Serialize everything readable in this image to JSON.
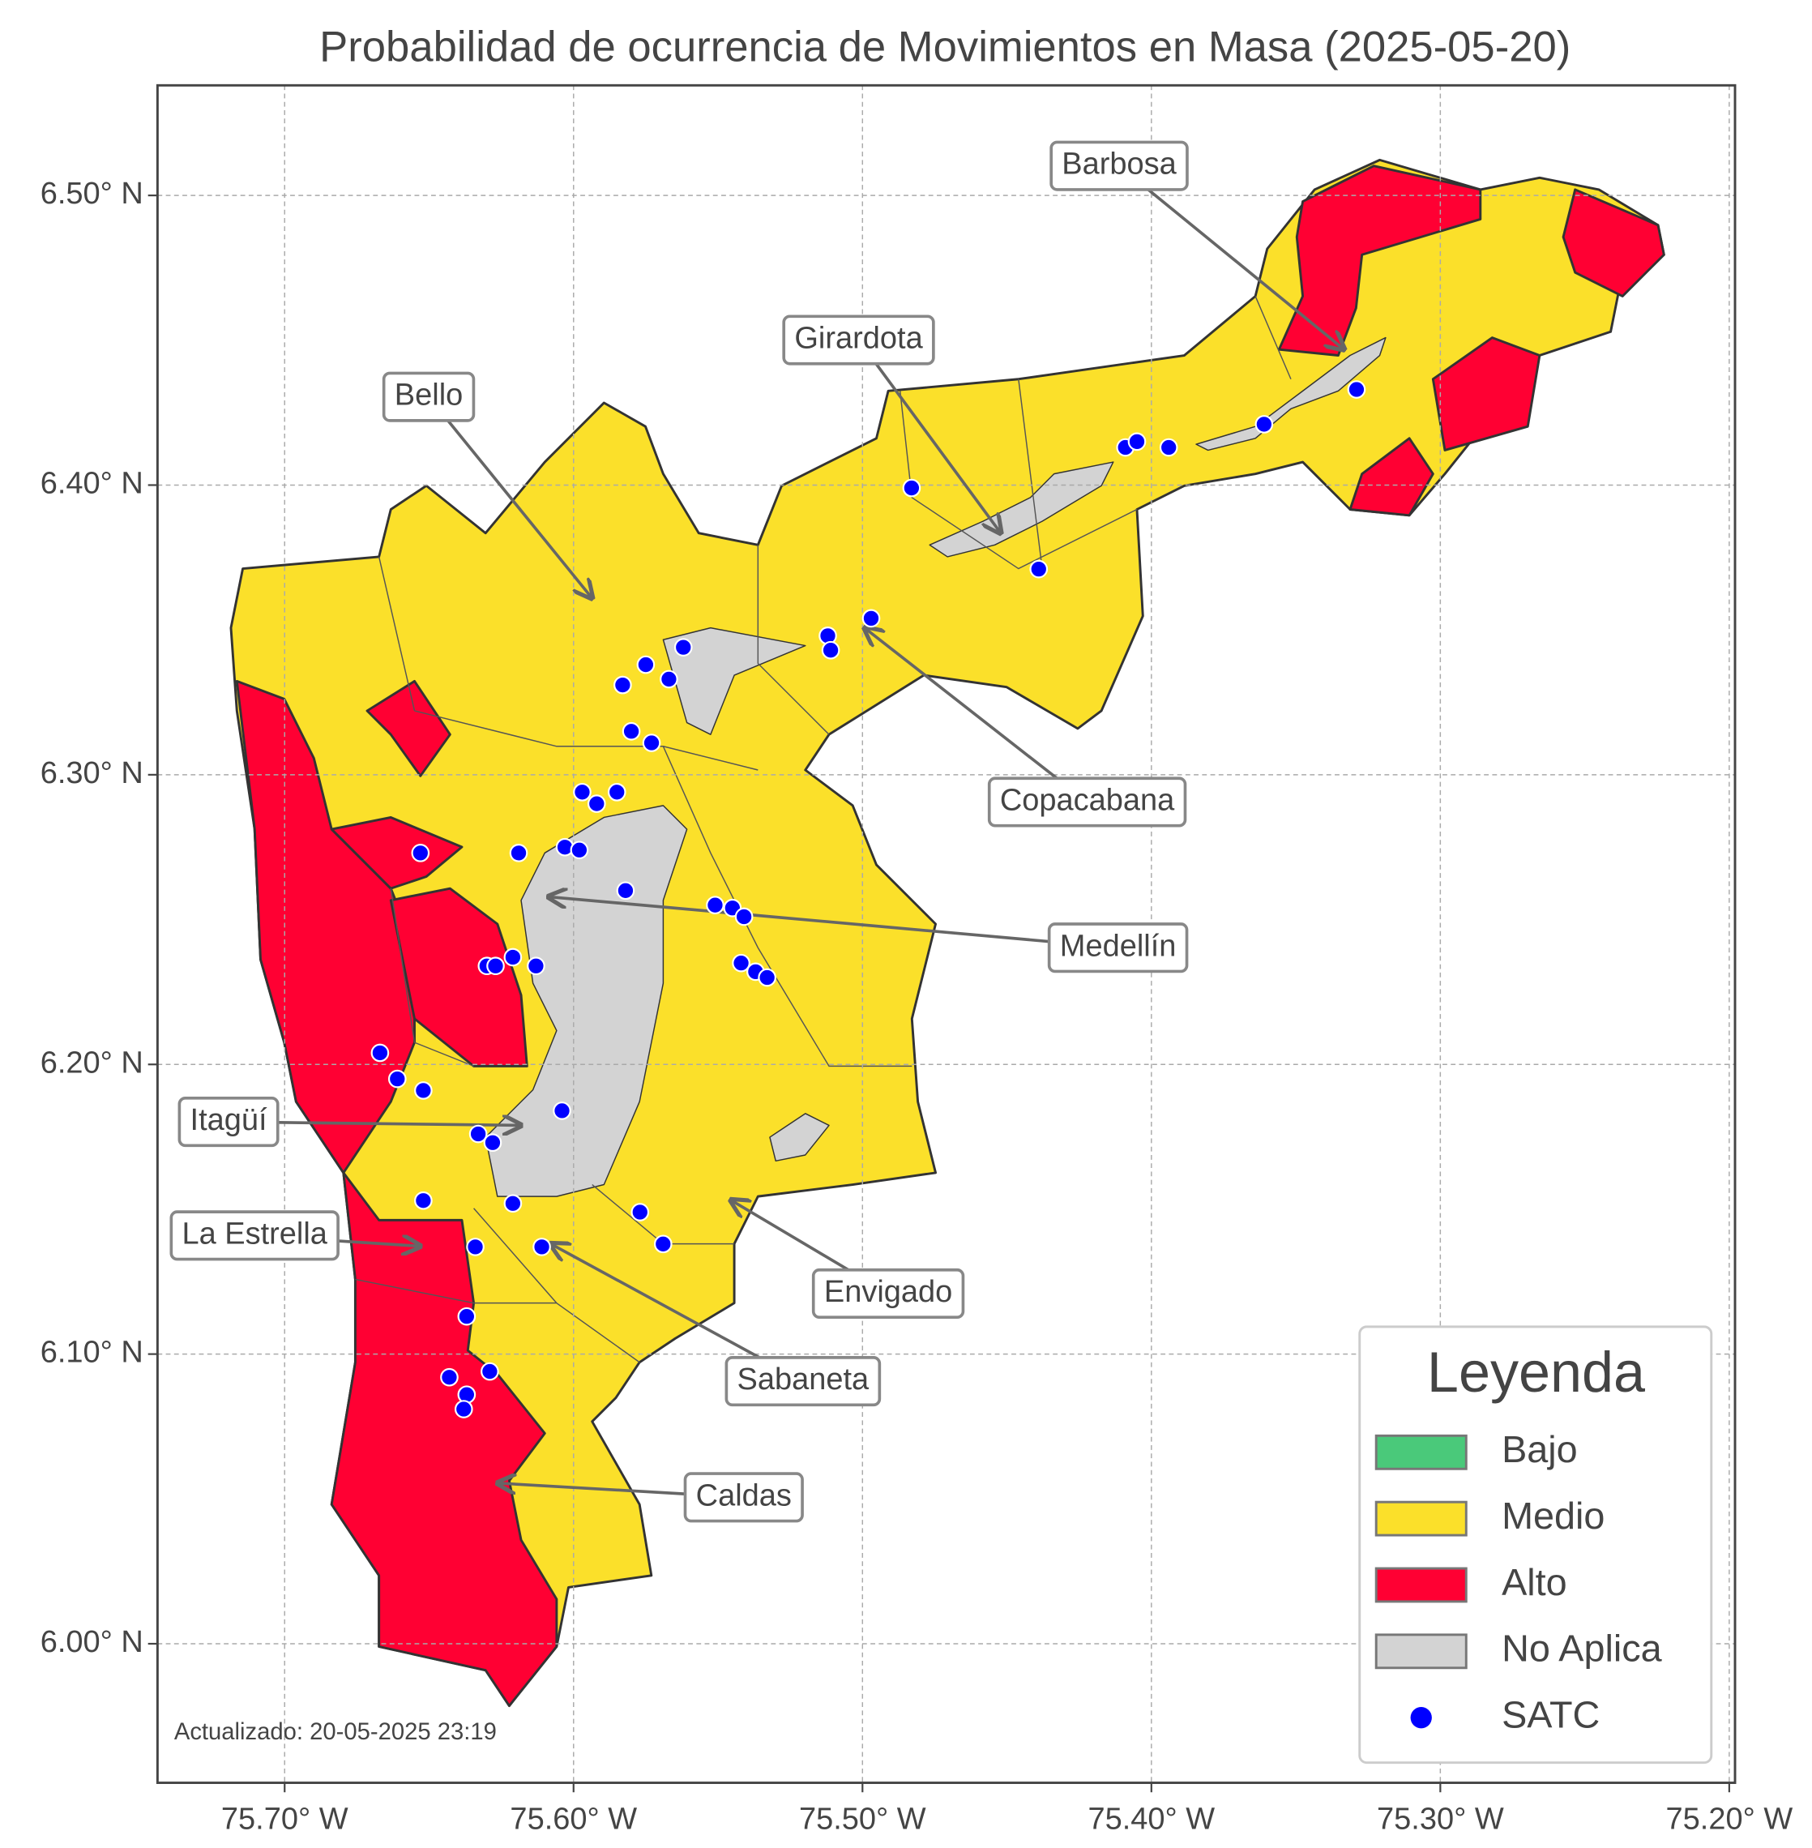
{
  "chart_data": {
    "type": "map",
    "title": "Probabilidad de ocurrencia de Movimientos en Masa (2025-05-20)",
    "xlim": [
      -75.744,
      -75.198
    ],
    "ylim": [
      5.952,
      6.538
    ],
    "xticks": [
      {
        "value": -75.7,
        "label": "75.70° W"
      },
      {
        "value": -75.6,
        "label": "75.60° W"
      },
      {
        "value": -75.5,
        "label": "75.50° W"
      },
      {
        "value": -75.4,
        "label": "75.40° W"
      },
      {
        "value": -75.3,
        "label": "75.30° W"
      },
      {
        "value": -75.2,
        "label": "75.20° W"
      }
    ],
    "yticks": [
      {
        "value": 6.0,
        "label": "6.00° N"
      },
      {
        "value": 6.1,
        "label": "6.10° N"
      },
      {
        "value": 6.2,
        "label": "6.20° N"
      },
      {
        "value": 6.3,
        "label": "6.30° N"
      },
      {
        "value": 6.4,
        "label": "6.40° N"
      },
      {
        "value": 6.5,
        "label": "6.50° N"
      }
    ],
    "grid": true,
    "legend": {
      "title": "Leyenda",
      "position": "lower right",
      "entries": [
        {
          "label": "Bajo",
          "color": "#4ac97a"
        },
        {
          "label": "Medio",
          "color": "#fbe02a"
        },
        {
          "label": "Alto",
          "color": "#ff0033"
        },
        {
          "label": "No Aplica",
          "color": "#d3d3d3"
        }
      ]
    },
    "series": [
      {
        "name": "SATC",
        "color": "#0000ff",
        "x": [
          -75.329,
          -75.361,
          -75.409,
          -75.405,
          -75.394,
          -75.483,
          -75.439,
          -75.497,
          -75.512,
          -75.511,
          -75.562,
          -75.575,
          -75.583,
          -75.567,
          -75.58,
          -75.573,
          -75.597,
          -75.592,
          -75.585,
          -75.653,
          -75.619,
          -75.603,
          -75.598,
          -75.582,
          -75.551,
          -75.545,
          -75.541,
          -75.542,
          -75.537,
          -75.533,
          -75.621,
          -75.613,
          -75.63,
          -75.627,
          -75.667,
          -75.661,
          -75.652,
          -75.604,
          -75.633,
          -75.628,
          -75.652,
          -75.621,
          -75.577,
          -75.569,
          -75.634,
          -75.611,
          -75.637,
          -75.643,
          -75.629,
          -75.637,
          -75.638
        ],
        "y": [
          6.433,
          6.421,
          6.413,
          6.415,
          6.413,
          6.399,
          6.371,
          6.354,
          6.348,
          6.343,
          6.344,
          6.338,
          6.331,
          6.333,
          6.315,
          6.311,
          6.294,
          6.29,
          6.294,
          6.273,
          6.273,
          6.275,
          6.274,
          6.26,
          6.255,
          6.254,
          6.251,
          6.235,
          6.232,
          6.23,
          6.237,
          6.234,
          6.234,
          6.234,
          6.204,
          6.195,
          6.191,
          6.184,
          6.176,
          6.173,
          6.153,
          6.152,
          6.149,
          6.138,
          6.137,
          6.137,
          6.113,
          6.092,
          6.094,
          6.086,
          6.081
        ]
      }
    ],
    "annotations": [
      "Barbosa",
      "Girardota",
      "Bello",
      "Copacabana",
      "Medellín",
      "Itagüí",
      "La Estrella",
      "Envigado",
      "Sabaneta",
      "Caldas"
    ],
    "footnote": "Actualizado: 20-05-2025 23:19"
  }
}
